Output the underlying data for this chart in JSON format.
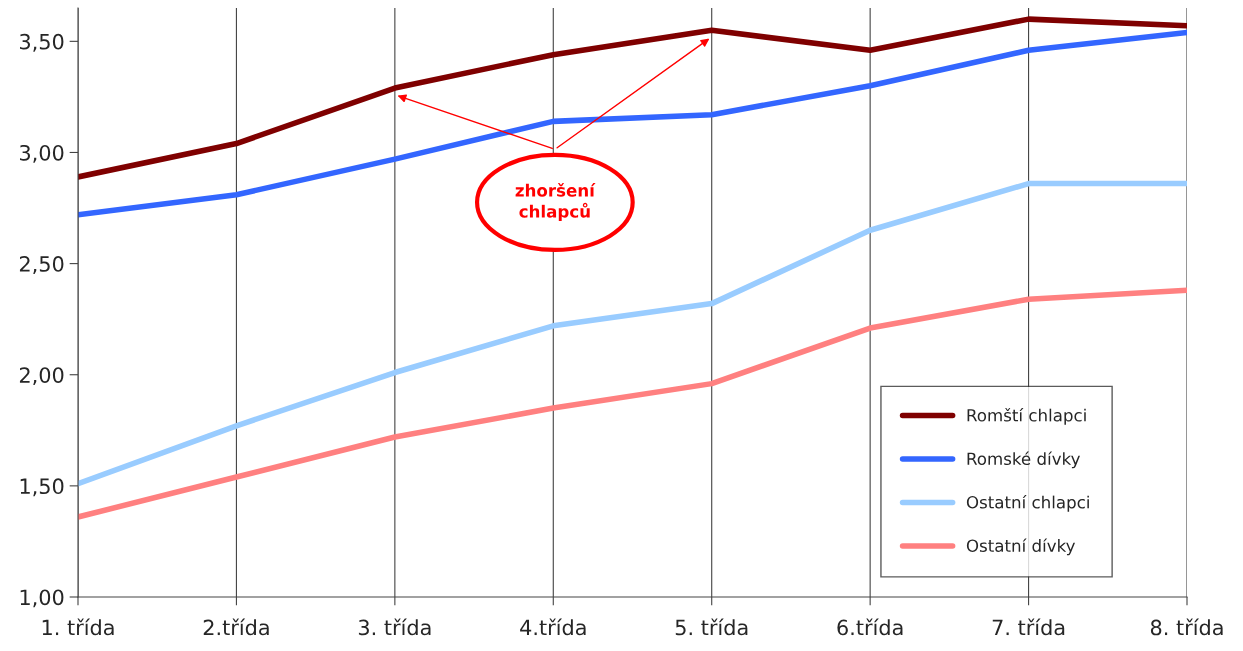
{
  "chart_data": {
    "type": "line",
    "categories": [
      "1. třída",
      "2.třída",
      "3. třída",
      "4.třída",
      "5. třída",
      "6.třída",
      "7. třída",
      "8. třída"
    ],
    "series": [
      {
        "name": "Romští chlapci",
        "color": "#7f0000",
        "values": [
          2.89,
          3.04,
          3.29,
          3.44,
          3.55,
          3.46,
          3.6,
          3.57
        ]
      },
      {
        "name": "Romské dívky",
        "color": "#3366ff",
        "values": [
          2.72,
          2.81,
          2.97,
          3.14,
          3.17,
          3.3,
          3.46,
          3.54
        ]
      },
      {
        "name": "Ostatní chlapci",
        "color": "#99ccff",
        "values": [
          1.51,
          1.77,
          2.01,
          2.22,
          2.32,
          2.65,
          2.86,
          2.86
        ]
      },
      {
        "name": "Ostatní dívky",
        "color": "#ff8080",
        "values": [
          1.36,
          1.54,
          1.72,
          1.85,
          1.96,
          2.21,
          2.34,
          2.38
        ]
      }
    ],
    "ylim": [
      1,
      3.65
    ],
    "yticks": [
      {
        "value": 1,
        "label": "1,00"
      },
      {
        "value": 1.5,
        "label": "1,50"
      },
      {
        "value": 2,
        "label": "2,00"
      },
      {
        "value": 2.5,
        "label": "2,50"
      },
      {
        "value": 3,
        "label": "3,00"
      },
      {
        "value": 3.5,
        "label": "3,50"
      }
    ],
    "annotations": [
      "zhoršení\nchlapců"
    ],
    "grid": "x",
    "legend": "bottom right",
    "marker": "none",
    "line_style": "solid"
  }
}
